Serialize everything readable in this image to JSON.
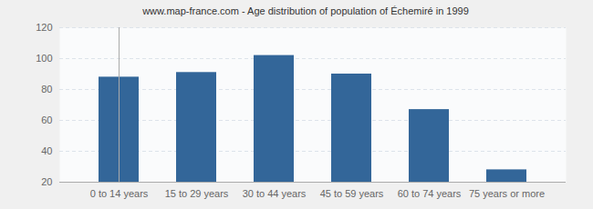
{
  "chart_data": {
    "type": "bar",
    "title": "www.map-france.com - Age distribution of population of Échemiré in 1999",
    "categories": [
      "0 to 14 years",
      "15 to 29 years",
      "30 to 44 years",
      "45 to 59 years",
      "60 to 74 years",
      "75 years or more"
    ],
    "values": [
      88,
      91,
      102,
      90,
      67,
      28
    ],
    "color": "#336699",
    "ylim": [
      20,
      120
    ],
    "yticks": [
      20,
      40,
      60,
      80,
      100,
      120
    ],
    "grid": true
  }
}
